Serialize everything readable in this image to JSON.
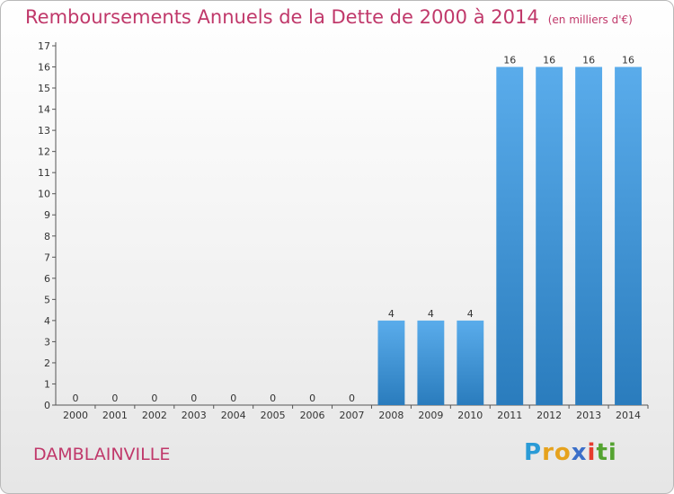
{
  "title": "Remboursements Annuels de la Dette de 2000 à 2014",
  "subtitle": "(en milliers d'€)",
  "commune": "DAMBLAINVILLE",
  "logo": {
    "letters": [
      "P",
      "r",
      "o",
      "x",
      "i",
      "t",
      "i"
    ],
    "colors": [
      "#2a9bd6",
      "#e6a21d",
      "#e6a21d",
      "#3b6fc9",
      "#e63b2e",
      "#55a331",
      "#55a331"
    ]
  },
  "colors": {
    "text_accent": "#c0386a",
    "bar_top": "#5aaceb",
    "bar_bottom": "#2a7cbd"
  },
  "chart_data": {
    "type": "bar",
    "categories": [
      "2000",
      "2001",
      "2002",
      "2003",
      "2004",
      "2005",
      "2006",
      "2007",
      "2008",
      "2009",
      "2010",
      "2011",
      "2012",
      "2013",
      "2014"
    ],
    "values": [
      0,
      0,
      0,
      0,
      0,
      0,
      0,
      0,
      4,
      4,
      4,
      16,
      16,
      16,
      16
    ],
    "data_labels": [
      "0",
      "0",
      "0",
      "0",
      "0",
      "0",
      "0",
      "0",
      "4",
      "4",
      "4",
      "16",
      "16",
      "16",
      "16"
    ],
    "yticks": [
      "0",
      "1",
      "2",
      "3",
      "4",
      "5",
      "6",
      "7",
      "8",
      "9",
      "10",
      "11",
      "12",
      "13",
      "14",
      "15",
      "16",
      "17"
    ],
    "ylim": [
      0,
      17
    ],
    "grid": false,
    "legend": "none"
  }
}
